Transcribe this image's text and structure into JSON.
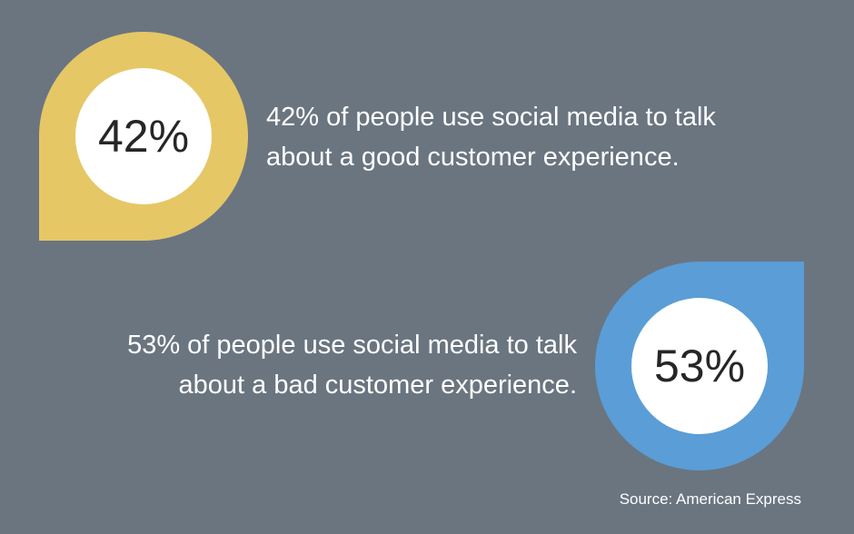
{
  "stats": [
    {
      "percent": "42%",
      "line1": "42% of people use social media to talk",
      "line2": "about a good customer experience.",
      "color": "#e6c766"
    },
    {
      "percent": "53%",
      "line1": "53% of people use social media to talk",
      "line2": "about a bad customer experience.",
      "color": "#5b9dd6"
    }
  ],
  "source": "Source: American Express"
}
